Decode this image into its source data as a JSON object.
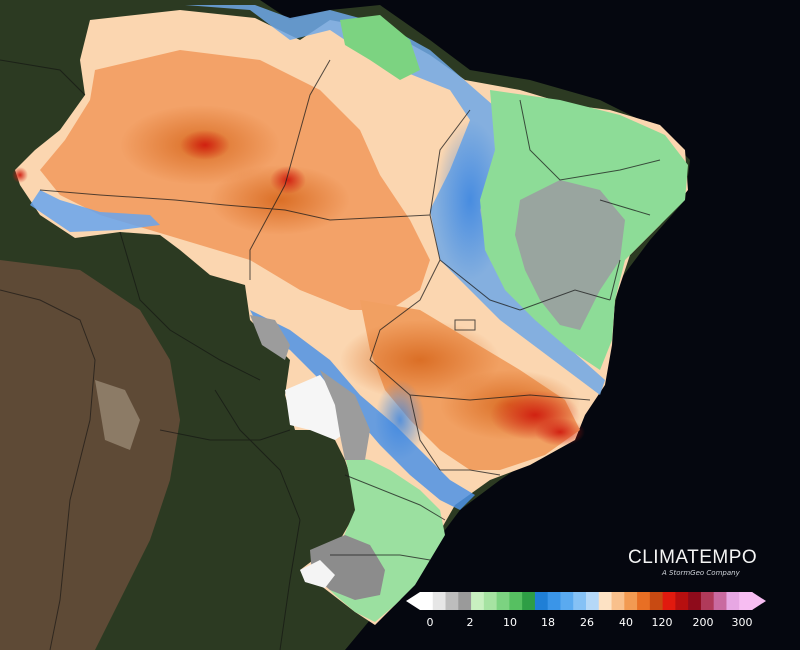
{
  "brand": {
    "name": "CLIMATEMPO",
    "tagline": "A StormGeo Company"
  },
  "legend": {
    "labels": [
      "0",
      "2",
      "10",
      "18",
      "26",
      "40",
      "120",
      "200",
      "300"
    ],
    "colors": [
      "#ffffff",
      "#e6e6e6",
      "#bdbdbd",
      "#9a9a9a",
      "#c8f0c0",
      "#a6e3a2",
      "#7cd381",
      "#56c061",
      "#2e9e45",
      "#1f7fd6",
      "#3a95e8",
      "#5aaaf0",
      "#85c1f5",
      "#b5d8f7",
      "#fde2c4",
      "#f9c08c",
      "#f29a52",
      "#e86f24",
      "#c84a12",
      "#e11a0e",
      "#b70f0f",
      "#8e0b1b",
      "#b03a5a",
      "#c96aa0",
      "#e7a7e3",
      "#f7bdf2"
    ]
  }
}
